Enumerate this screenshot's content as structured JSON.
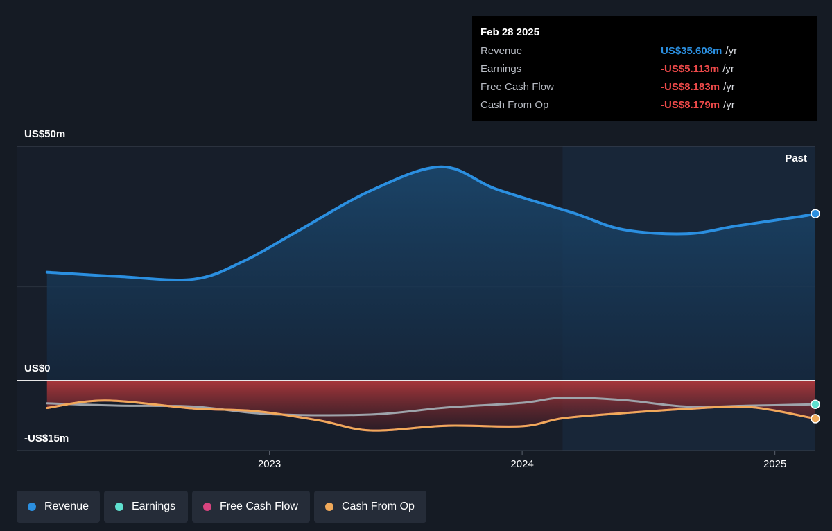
{
  "tooltip": {
    "date": "Feb 28 2025",
    "rows": [
      {
        "label": "Revenue",
        "value": "US$35.608m",
        "unit": "/yr",
        "color": "#2b8fe0"
      },
      {
        "label": "Earnings",
        "value": "-US$5.113m",
        "unit": "/yr",
        "color": "#ef4a4a"
      },
      {
        "label": "Free Cash Flow",
        "value": "-US$8.183m",
        "unit": "/yr",
        "color": "#ef4a4a"
      },
      {
        "label": "Cash From Op",
        "value": "-US$8.179m",
        "unit": "/yr",
        "color": "#ef4a4a"
      }
    ]
  },
  "chart_data": {
    "type": "line",
    "y_labels": {
      "top": "US$50m",
      "zero": "US$0",
      "bottom": "-US$15m"
    },
    "ylim": [
      -15,
      50
    ],
    "x_ticks": [
      {
        "label": "2023",
        "x": 2023.0
      },
      {
        "label": "2024",
        "x": 2024.0
      },
      {
        "label": "2025",
        "x": 2025.0
      }
    ],
    "past_label": "Past",
    "past_start": 2024.16,
    "xlim": [
      2022.0,
      2025.16
    ],
    "series": [
      {
        "name": "Revenue",
        "color": "#2b8fe0",
        "points": [
          [
            2022.12,
            23.1
          ],
          [
            2022.4,
            22.2
          ],
          [
            2022.7,
            21.6
          ],
          [
            2022.9,
            25.5
          ],
          [
            2023.1,
            31.5
          ],
          [
            2023.4,
            40.5
          ],
          [
            2023.68,
            45.6
          ],
          [
            2023.9,
            40.8
          ],
          [
            2024.2,
            35.8
          ],
          [
            2024.4,
            32.2
          ],
          [
            2024.65,
            31.3
          ],
          [
            2024.85,
            33.0
          ],
          [
            2025.1,
            35.0
          ],
          [
            2025.16,
            35.608
          ]
        ]
      },
      {
        "name": "Earnings",
        "color": "#5fe0cf",
        "points": [
          [
            2022.12,
            -4.9
          ],
          [
            2022.4,
            -5.4
          ],
          [
            2022.7,
            -5.6
          ],
          [
            2023.0,
            -7.2
          ],
          [
            2023.4,
            -7.3
          ],
          [
            2023.7,
            -5.8
          ],
          [
            2024.0,
            -4.8
          ],
          [
            2024.16,
            -3.7
          ],
          [
            2024.4,
            -4.2
          ],
          [
            2024.65,
            -5.6
          ],
          [
            2024.9,
            -5.4
          ],
          [
            2025.16,
            -5.113
          ]
        ]
      },
      {
        "name": "Free Cash Flow",
        "color": "#d8447f",
        "points": [
          [
            2022.12,
            -5.9
          ],
          [
            2022.35,
            -4.3
          ],
          [
            2022.7,
            -6.0
          ],
          [
            2022.95,
            -6.6
          ],
          [
            2023.2,
            -8.6
          ],
          [
            2023.4,
            -10.7
          ],
          [
            2023.7,
            -9.7
          ],
          [
            2024.0,
            -9.8
          ],
          [
            2024.16,
            -8.1
          ],
          [
            2024.4,
            -7.0
          ],
          [
            2024.65,
            -6.1
          ],
          [
            2024.9,
            -5.7
          ],
          [
            2025.16,
            -8.183
          ]
        ]
      },
      {
        "name": "Cash From Op",
        "color": "#f0a95a",
        "points": [
          [
            2022.12,
            -5.9
          ],
          [
            2022.35,
            -4.3
          ],
          [
            2022.7,
            -6.0
          ],
          [
            2022.95,
            -6.6
          ],
          [
            2023.2,
            -8.6
          ],
          [
            2023.4,
            -10.7
          ],
          [
            2023.7,
            -9.7
          ],
          [
            2024.0,
            -9.8
          ],
          [
            2024.16,
            -8.1
          ],
          [
            2024.4,
            -7.0
          ],
          [
            2024.65,
            -6.1
          ],
          [
            2024.9,
            -5.7
          ],
          [
            2025.16,
            -8.179
          ]
        ]
      }
    ]
  },
  "legend": [
    {
      "label": "Revenue",
      "color": "#2b8fe0"
    },
    {
      "label": "Earnings",
      "color": "#5fe0cf"
    },
    {
      "label": "Free Cash Flow",
      "color": "#d8447f"
    },
    {
      "label": "Cash From Op",
      "color": "#f0a95a"
    }
  ]
}
